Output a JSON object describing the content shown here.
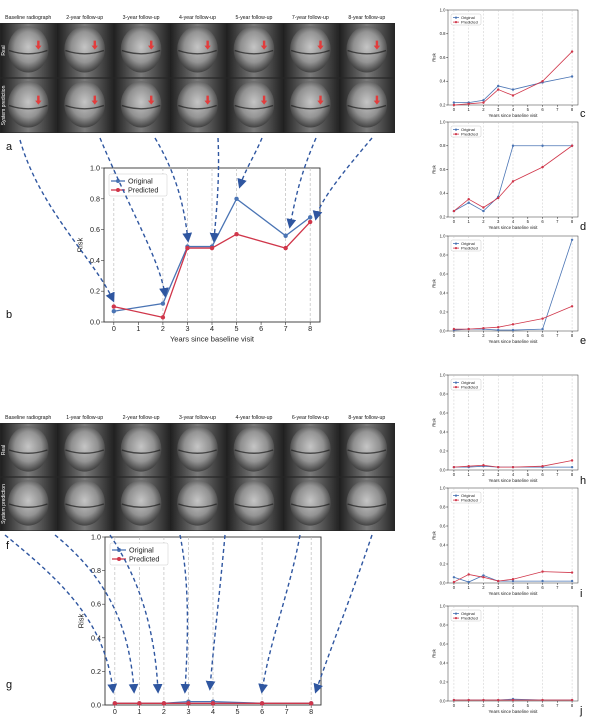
{
  "colors": {
    "original": "#4a74b4",
    "predicted": "#d0364a",
    "arrow": "#2f56a0",
    "grid": "#bdbdbd",
    "axis": "#333333",
    "xray_rows": [
      "#3c3c3c",
      "#2e2e2e"
    ]
  },
  "panel_letters": [
    "a",
    "b",
    "c",
    "d",
    "e",
    "f",
    "g",
    "h",
    "i",
    "j"
  ],
  "strip_top": {
    "columns": [
      "Baseline radiograph",
      "2-year follow-up",
      "3-year follow-up",
      "4-year follow-up",
      "5-year follow-up",
      "7-year follow-up",
      "8-year follow-up"
    ],
    "rows": [
      "Real",
      "System prediction"
    ]
  },
  "strip_bottom": {
    "columns": [
      "Baseline radiograph",
      "1-year follow-up",
      "2-year follow-up",
      "3-year follow-up",
      "4-year follow-up",
      "6-year follow-up",
      "8-year follow-up"
    ],
    "rows": [
      "Real",
      "System prediction"
    ]
  },
  "chart_data": [
    {
      "panel": "b",
      "type": "line",
      "xlabel": "Years since baseline visit",
      "ylabel": "Risk",
      "xticks": [
        0,
        1,
        2,
        3,
        4,
        5,
        6,
        7,
        8
      ],
      "yticks": [
        "0.0",
        "0.2",
        "0.4",
        "0.6",
        "0.8",
        "1.0"
      ],
      "ylim": [
        0,
        1.0
      ],
      "xlim": [
        -0.4,
        8.4
      ],
      "vlines": [
        0,
        2,
        3,
        4,
        5,
        7,
        8
      ],
      "legend": "top-left",
      "grid": false,
      "series": [
        {
          "name": "Original",
          "x": [
            0,
            2,
            3,
            4,
            5,
            7,
            8
          ],
          "values": [
            0.07,
            0.12,
            0.49,
            0.49,
            0.8,
            0.56,
            0.68
          ]
        },
        {
          "name": "Predicted",
          "x": [
            0,
            2,
            3,
            4,
            5,
            7,
            8
          ],
          "values": [
            0.1,
            0.03,
            0.48,
            0.48,
            0.57,
            0.48,
            0.65
          ]
        }
      ]
    },
    {
      "panel": "c",
      "type": "line",
      "xlabel": "Years since baseline visit",
      "ylabel": "Risk",
      "xticks": [
        0,
        1,
        2,
        3,
        4,
        5,
        6,
        7,
        8
      ],
      "yticks": [
        "0.2",
        "0.4",
        "0.6",
        "0.8",
        "1.0"
      ],
      "ylim": [
        0.2,
        1.0
      ],
      "xlim": [
        -0.4,
        8.4
      ],
      "vlines": [
        0,
        1,
        2,
        3,
        4,
        6,
        8
      ],
      "legend": "top-left",
      "grid": false,
      "series": [
        {
          "name": "Original",
          "x": [
            0,
            1,
            2,
            3,
            4,
            6,
            8
          ],
          "values": [
            0.22,
            0.22,
            0.24,
            0.36,
            0.33,
            0.39,
            0.44
          ]
        },
        {
          "name": "Predicted",
          "x": [
            0,
            1,
            2,
            3,
            4,
            6,
            8
          ],
          "values": [
            0.2,
            0.21,
            0.22,
            0.33,
            0.28,
            0.4,
            0.65
          ]
        }
      ]
    },
    {
      "panel": "d",
      "type": "line",
      "xlabel": "Years since baseline visit",
      "ylabel": "Risk",
      "xticks": [
        0,
        1,
        2,
        3,
        4,
        5,
        6,
        7,
        8
      ],
      "yticks": [
        "0.2",
        "0.4",
        "0.6",
        "0.8",
        "1.0"
      ],
      "ylim": [
        0.2,
        1.0
      ],
      "xlim": [
        -0.4,
        8.4
      ],
      "vlines": [
        0,
        1,
        2,
        3,
        4,
        6,
        8
      ],
      "legend": "top-left",
      "grid": false,
      "series": [
        {
          "name": "Original",
          "x": [
            0,
            1,
            2,
            3,
            4,
            6,
            8
          ],
          "values": [
            0.25,
            0.32,
            0.25,
            0.37,
            0.8,
            0.8,
            0.8
          ]
        },
        {
          "name": "Predicted",
          "x": [
            0,
            1,
            2,
            3,
            4,
            6,
            8
          ],
          "values": [
            0.25,
            0.35,
            0.28,
            0.36,
            0.5,
            0.62,
            0.8
          ]
        }
      ]
    },
    {
      "panel": "e",
      "type": "line",
      "xlabel": "Years since baseline visit",
      "ylabel": "Risk",
      "xticks": [
        0,
        1,
        2,
        3,
        4,
        5,
        6,
        7,
        8
      ],
      "yticks": [
        "0.0",
        "0.2",
        "0.4",
        "0.6",
        "0.8",
        "1.0"
      ],
      "ylim": [
        0,
        1.0
      ],
      "xlim": [
        -0.4,
        8.4
      ],
      "vlines": [
        0,
        1,
        2,
        3,
        4,
        6,
        8
      ],
      "legend": "top-left",
      "grid": false,
      "series": [
        {
          "name": "Original",
          "x": [
            0,
            1,
            2,
            3,
            4,
            6,
            8
          ],
          "values": [
            0.01,
            0.02,
            0.02,
            0.01,
            0.01,
            0.02,
            0.96
          ]
        },
        {
          "name": "Predicted",
          "x": [
            0,
            1,
            2,
            3,
            4,
            6,
            8
          ],
          "values": [
            0.02,
            0.02,
            0.03,
            0.04,
            0.07,
            0.13,
            0.26
          ]
        }
      ]
    },
    {
      "panel": "g",
      "type": "line",
      "xlabel": "Years since baseline visit",
      "ylabel": "Risk",
      "xticks": [
        0,
        1,
        2,
        3,
        4,
        5,
        6,
        7,
        8
      ],
      "yticks": [
        "0.0",
        "0.2",
        "0.4",
        "0.6",
        "0.8",
        "1.0"
      ],
      "ylim": [
        0,
        1.0
      ],
      "xlim": [
        -0.4,
        8.4
      ],
      "vlines": [
        0,
        1,
        2,
        3,
        4,
        6,
        8
      ],
      "legend": "top-left",
      "grid": false,
      "series": [
        {
          "name": "Original",
          "x": [
            0,
            1,
            2,
            3,
            4,
            6,
            8
          ],
          "values": [
            0.01,
            0.01,
            0.01,
            0.02,
            0.02,
            0.01,
            0.01
          ]
        },
        {
          "name": "Predicted",
          "x": [
            0,
            1,
            2,
            3,
            4,
            6,
            8
          ],
          "values": [
            0.01,
            0.01,
            0.01,
            0.01,
            0.01,
            0.01,
            0.01
          ]
        }
      ]
    },
    {
      "panel": "h",
      "type": "line",
      "xlabel": "Years since baseline visit",
      "ylabel": "Risk",
      "xticks": [
        0,
        1,
        2,
        3,
        4,
        5,
        6,
        7,
        8
      ],
      "yticks": [
        "0.0",
        "0.2",
        "0.4",
        "0.6",
        "0.8",
        "1.0"
      ],
      "ylim": [
        0,
        1.0
      ],
      "xlim": [
        -0.4,
        8.4
      ],
      "vlines": [
        0,
        1,
        2,
        3,
        4,
        6,
        8
      ],
      "legend": "top-left",
      "grid": false,
      "series": [
        {
          "name": "Original",
          "x": [
            0,
            1,
            2,
            3,
            4,
            6,
            8
          ],
          "values": [
            0.03,
            0.03,
            0.04,
            0.03,
            0.03,
            0.03,
            0.03
          ]
        },
        {
          "name": "Predicted",
          "x": [
            0,
            1,
            2,
            3,
            4,
            6,
            8
          ],
          "values": [
            0.03,
            0.04,
            0.05,
            0.03,
            0.03,
            0.04,
            0.1
          ]
        }
      ]
    },
    {
      "panel": "i",
      "type": "line",
      "xlabel": "Years since baseline visit",
      "ylabel": "Risk",
      "xticks": [
        0,
        1,
        2,
        3,
        4,
        5,
        6,
        7,
        8
      ],
      "yticks": [
        "0.0",
        "0.2",
        "0.4",
        "0.6",
        "0.8",
        "1.0"
      ],
      "ylim": [
        0,
        1.0
      ],
      "xlim": [
        -0.4,
        8.4
      ],
      "vlines": [
        0,
        1,
        2,
        3,
        4,
        6,
        8
      ],
      "legend": "top-left",
      "grid": false,
      "series": [
        {
          "name": "Original",
          "x": [
            0,
            1,
            2,
            3,
            4,
            6,
            8
          ],
          "values": [
            0.06,
            0.01,
            0.08,
            0.02,
            0.02,
            0.02,
            0.02
          ]
        },
        {
          "name": "Predicted",
          "x": [
            0,
            1,
            2,
            3,
            4,
            6,
            8
          ],
          "values": [
            0.01,
            0.09,
            0.06,
            0.02,
            0.04,
            0.12,
            0.11
          ]
        }
      ]
    },
    {
      "panel": "j",
      "type": "line",
      "xlabel": "Years since baseline visit",
      "ylabel": "Risk",
      "xticks": [
        0,
        1,
        2,
        3,
        4,
        5,
        6,
        7,
        8
      ],
      "yticks": [
        "0.0",
        "0.2",
        "0.4",
        "0.6",
        "0.8",
        "1.0"
      ],
      "ylim": [
        0,
        1.0
      ],
      "xlim": [
        -0.4,
        8.4
      ],
      "vlines": [
        0,
        1,
        2,
        3,
        4,
        6,
        8
      ],
      "legend": "top-left",
      "grid": false,
      "series": [
        {
          "name": "Original",
          "x": [
            0,
            1,
            2,
            3,
            4,
            6,
            8
          ],
          "values": [
            0.01,
            0.01,
            0.01,
            0.01,
            0.02,
            0.01,
            0.01
          ]
        },
        {
          "name": "Predicted",
          "x": [
            0,
            1,
            2,
            3,
            4,
            6,
            8
          ],
          "values": [
            0.01,
            0.01,
            0.01,
            0.01,
            0.01,
            0.01,
            0.01
          ]
        }
      ]
    }
  ]
}
